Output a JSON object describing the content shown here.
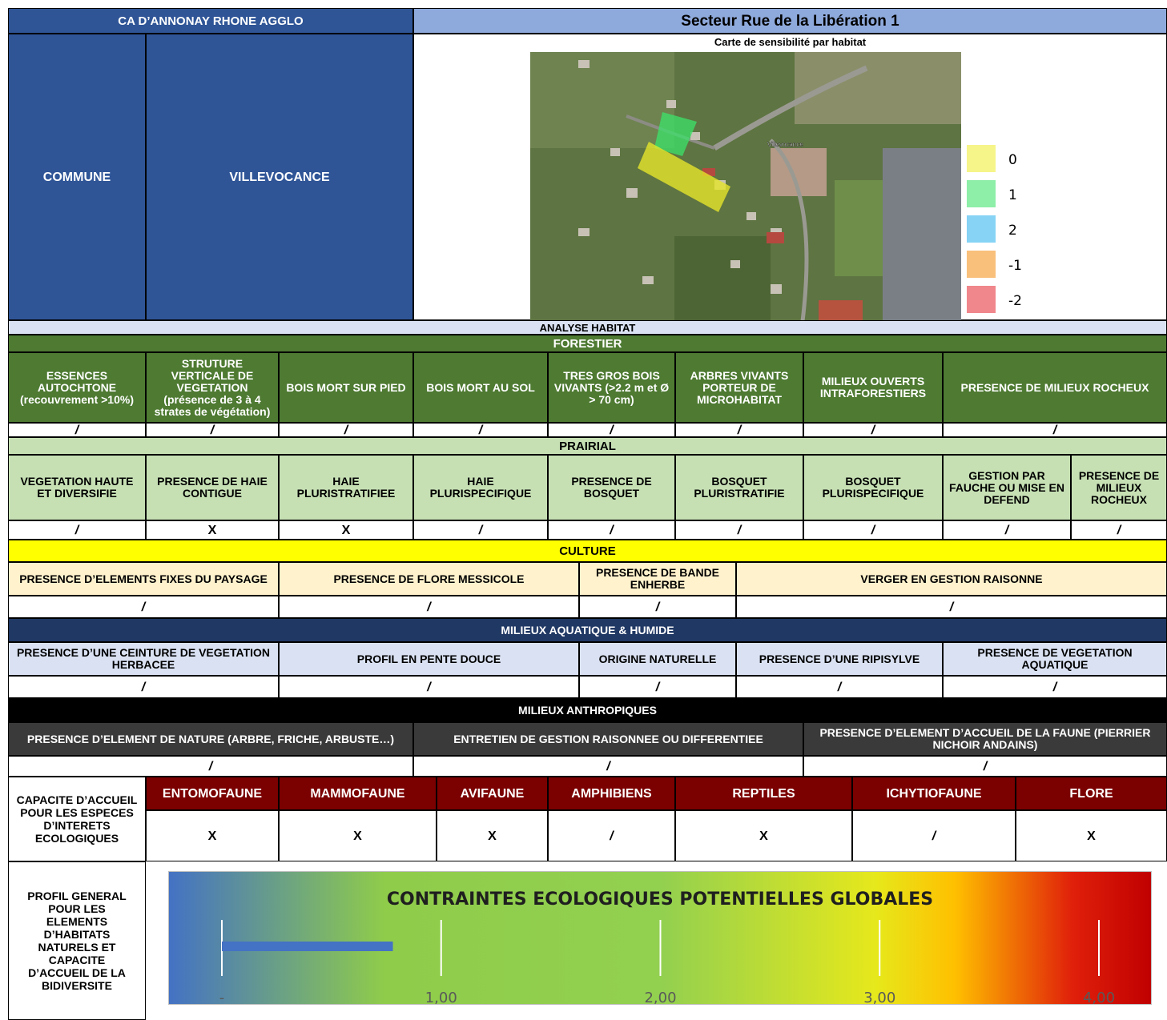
{
  "header": {
    "agglo": "CA D’ANNONAY RHONE AGGLO",
    "secteur": "Secteur Rue de la Libération 1",
    "commune_label": "COMMUNE",
    "commune_value": "VILLEVOCANCE"
  },
  "map": {
    "title": "Carte de sensibilité par habitat",
    "place_label": "Villevocance",
    "legend": [
      {
        "label": "0",
        "color": "#F6F58A"
      },
      {
        "label": "1",
        "color": "#8EEFA8"
      },
      {
        "label": "2",
        "color": "#86D3F5"
      },
      {
        "label": "-1",
        "color": "#F9C07C"
      },
      {
        "label": "-2",
        "color": "#F0878C"
      }
    ]
  },
  "analyse": "ANALYSE HABITAT",
  "forestier": {
    "title": "FORESTIER",
    "headers": [
      "ESSENCES AUTOCHTONE (recouvrement >10%)",
      "STRUTURE VERTICALE DE VEGETATION (présence de 3 à 4 strates de végétation)",
      "BOIS MORT SUR PIED",
      "BOIS MORT AU SOL",
      "TRES GROS BOIS VIVANTS (>2.2 m et Ø > 70 cm)",
      "ARBRES VIVANTS PORTEUR DE MICROHABITAT",
      "MILIEUX OUVERTS INTRAFORESTIERS",
      "PRESENCE DE MILIEUX ROCHEUX"
    ],
    "values": [
      "/",
      "/",
      "/",
      "/",
      "/",
      "/",
      "/",
      "/"
    ]
  },
  "prairial": {
    "title": "PRAIRIAL",
    "headers": [
      "VEGETATION HAUTE ET DIVERSIFIE",
      "PRESENCE DE HAIE CONTIGUE",
      "HAIE PLURISTRATIFIEE",
      "HAIE PLURISPECIFIQUE",
      "PRESENCE DE BOSQUET",
      "BOSQUET PLURISTRATIFIE",
      "BOSQUET PLURISPECIFIQUE",
      "GESTION PAR FAUCHE OU MISE EN DEFEND",
      "PRESENCE DE MILIEUX ROCHEUX"
    ],
    "values": [
      "/",
      "X",
      "X",
      "/",
      "/",
      "/",
      "/",
      "/",
      "/"
    ]
  },
  "culture": {
    "title": "CULTURE",
    "headers": [
      "PRESENCE D’ELEMENTS FIXES DU PAYSAGE",
      "PRESENCE DE FLORE MESSICOLE",
      "PRESENCE DE BANDE ENHERBE",
      "VERGER EN GESTION RAISONNE"
    ],
    "values": [
      "/",
      "/",
      "/",
      "/"
    ]
  },
  "aquatique": {
    "title": "MILIEUX AQUATIQUE & HUMIDE",
    "headers": [
      "PRESENCE D’UNE CEINTURE DE VEGETATION HERBACEE",
      "PROFIL EN PENTE DOUCE",
      "ORIGINE NATURELLE",
      "PRESENCE D’UNE RIPISYLVE",
      "PRESENCE DE VEGETATION AQUATIQUE"
    ],
    "values": [
      "/",
      "/",
      "/",
      "/",
      "/"
    ]
  },
  "anthropique": {
    "title": "MILIEUX ANTHROPIQUES",
    "headers": [
      "PRESENCE D’ELEMENT DE NATURE (ARBRE, FRICHE, ARBUSTE…)",
      "ENTRETIEN DE GESTION RAISONNEE OU DIFFERENTIEE",
      "PRESENCE D’ELEMENT D’ACCUEIL DE LA FAUNE (PIERRIER NICHOIR ANDAINS)"
    ],
    "values": [
      "/",
      "/",
      "/"
    ]
  },
  "capacite": {
    "label": "CAPACITE D’ACCUEIL POUR LES ESPECES D’INTERETS ECOLOGIQUES",
    "headers": [
      "ENTOMOFAUNE",
      "MAMMOFAUNE",
      "AVIFAUNE",
      "AMPHIBIENS",
      "REPTILES",
      "ICHYTIOFAUNE",
      "FLORE"
    ],
    "values": [
      "X",
      "X",
      "X",
      "/",
      "X",
      "/",
      "X"
    ]
  },
  "profil": {
    "label": "PROFIL GENERAL POUR LES ELEMENTS D’HABITATS NATURELS ET CAPACITE D’ACCUEIL DE LA BIDIVERSITE"
  },
  "chart_data": {
    "type": "bar",
    "orientation": "horizontal",
    "title": "CONTRAINTES ECOLOGIQUES POTENTIELLES GLOBALES",
    "tick_labels": [
      "-",
      "1,00",
      "2,00",
      "3,00",
      "4,00"
    ],
    "xlim": [
      0,
      4
    ],
    "values": [
      0.78
    ],
    "bar_color": "#4472C4",
    "grid": true
  }
}
